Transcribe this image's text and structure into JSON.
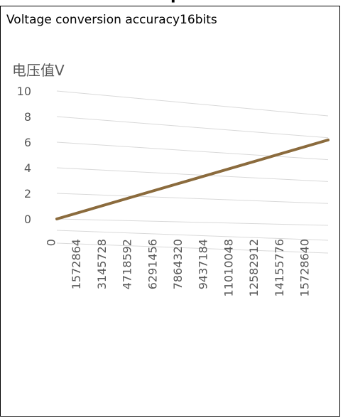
{
  "chart_data": {
    "type": "line",
    "title": "Voltage conversion accuracy16bits",
    "ylabel": "电压值V",
    "xlabel": "",
    "ylim": [
      0,
      10
    ],
    "y_ticks": [
      "0",
      "2",
      "4",
      "6",
      "8",
      "10"
    ],
    "x_tick_labels": [
      "0",
      "1572864",
      "3145728",
      "4718592",
      "6291456",
      "7864320",
      "9437184",
      "11010048",
      "12582912",
      "14155776",
      "15728640"
    ],
    "x_range": [
      0,
      16777215
    ],
    "grid": true,
    "legend": "none",
    "series": [
      {
        "x": [
          0,
          16777215
        ],
        "y": [
          0,
          7.8
        ],
        "color": "#8b6b3d"
      }
    ],
    "colors": {
      "gridline": "#d9d9d9",
      "axis_text": "#595959",
      "line": "#8b6b3d"
    }
  }
}
